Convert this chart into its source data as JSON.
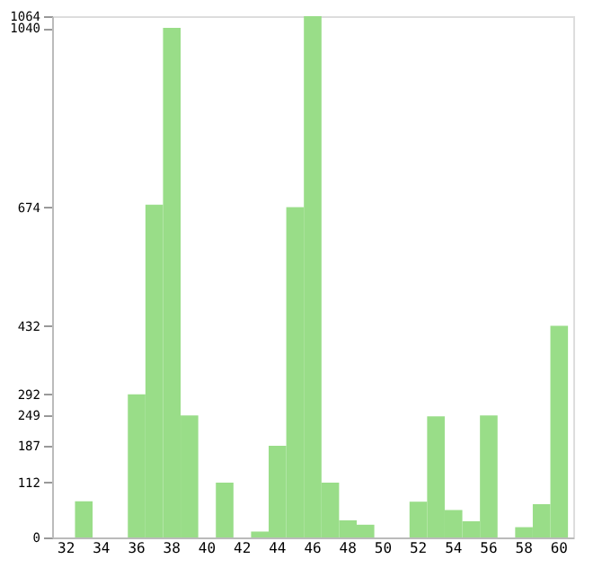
{
  "chart_data": {
    "type": "bar",
    "categories": [
      "32",
      null,
      "34",
      null,
      "36",
      null,
      "38",
      null,
      "40",
      null,
      "42",
      null,
      "44",
      null,
      "46",
      null,
      "48",
      null,
      "50",
      null,
      "52",
      null,
      "54",
      null,
      "56",
      null,
      "58",
      null,
      "60"
    ],
    "values": [
      0,
      74,
      0,
      0,
      292,
      679,
      1040,
      249,
      0,
      112,
      0,
      12,
      187,
      674,
      1064,
      112,
      35,
      26,
      0,
      0,
      73,
      247,
      56,
      33,
      249,
      0,
      21,
      68,
      432
    ],
    "color": "#99dd88",
    "ylim": [
      0,
      1064
    ],
    "yticks": [
      0,
      112,
      187,
      249,
      292,
      432,
      674,
      1040,
      1064
    ],
    "grid": false
  }
}
